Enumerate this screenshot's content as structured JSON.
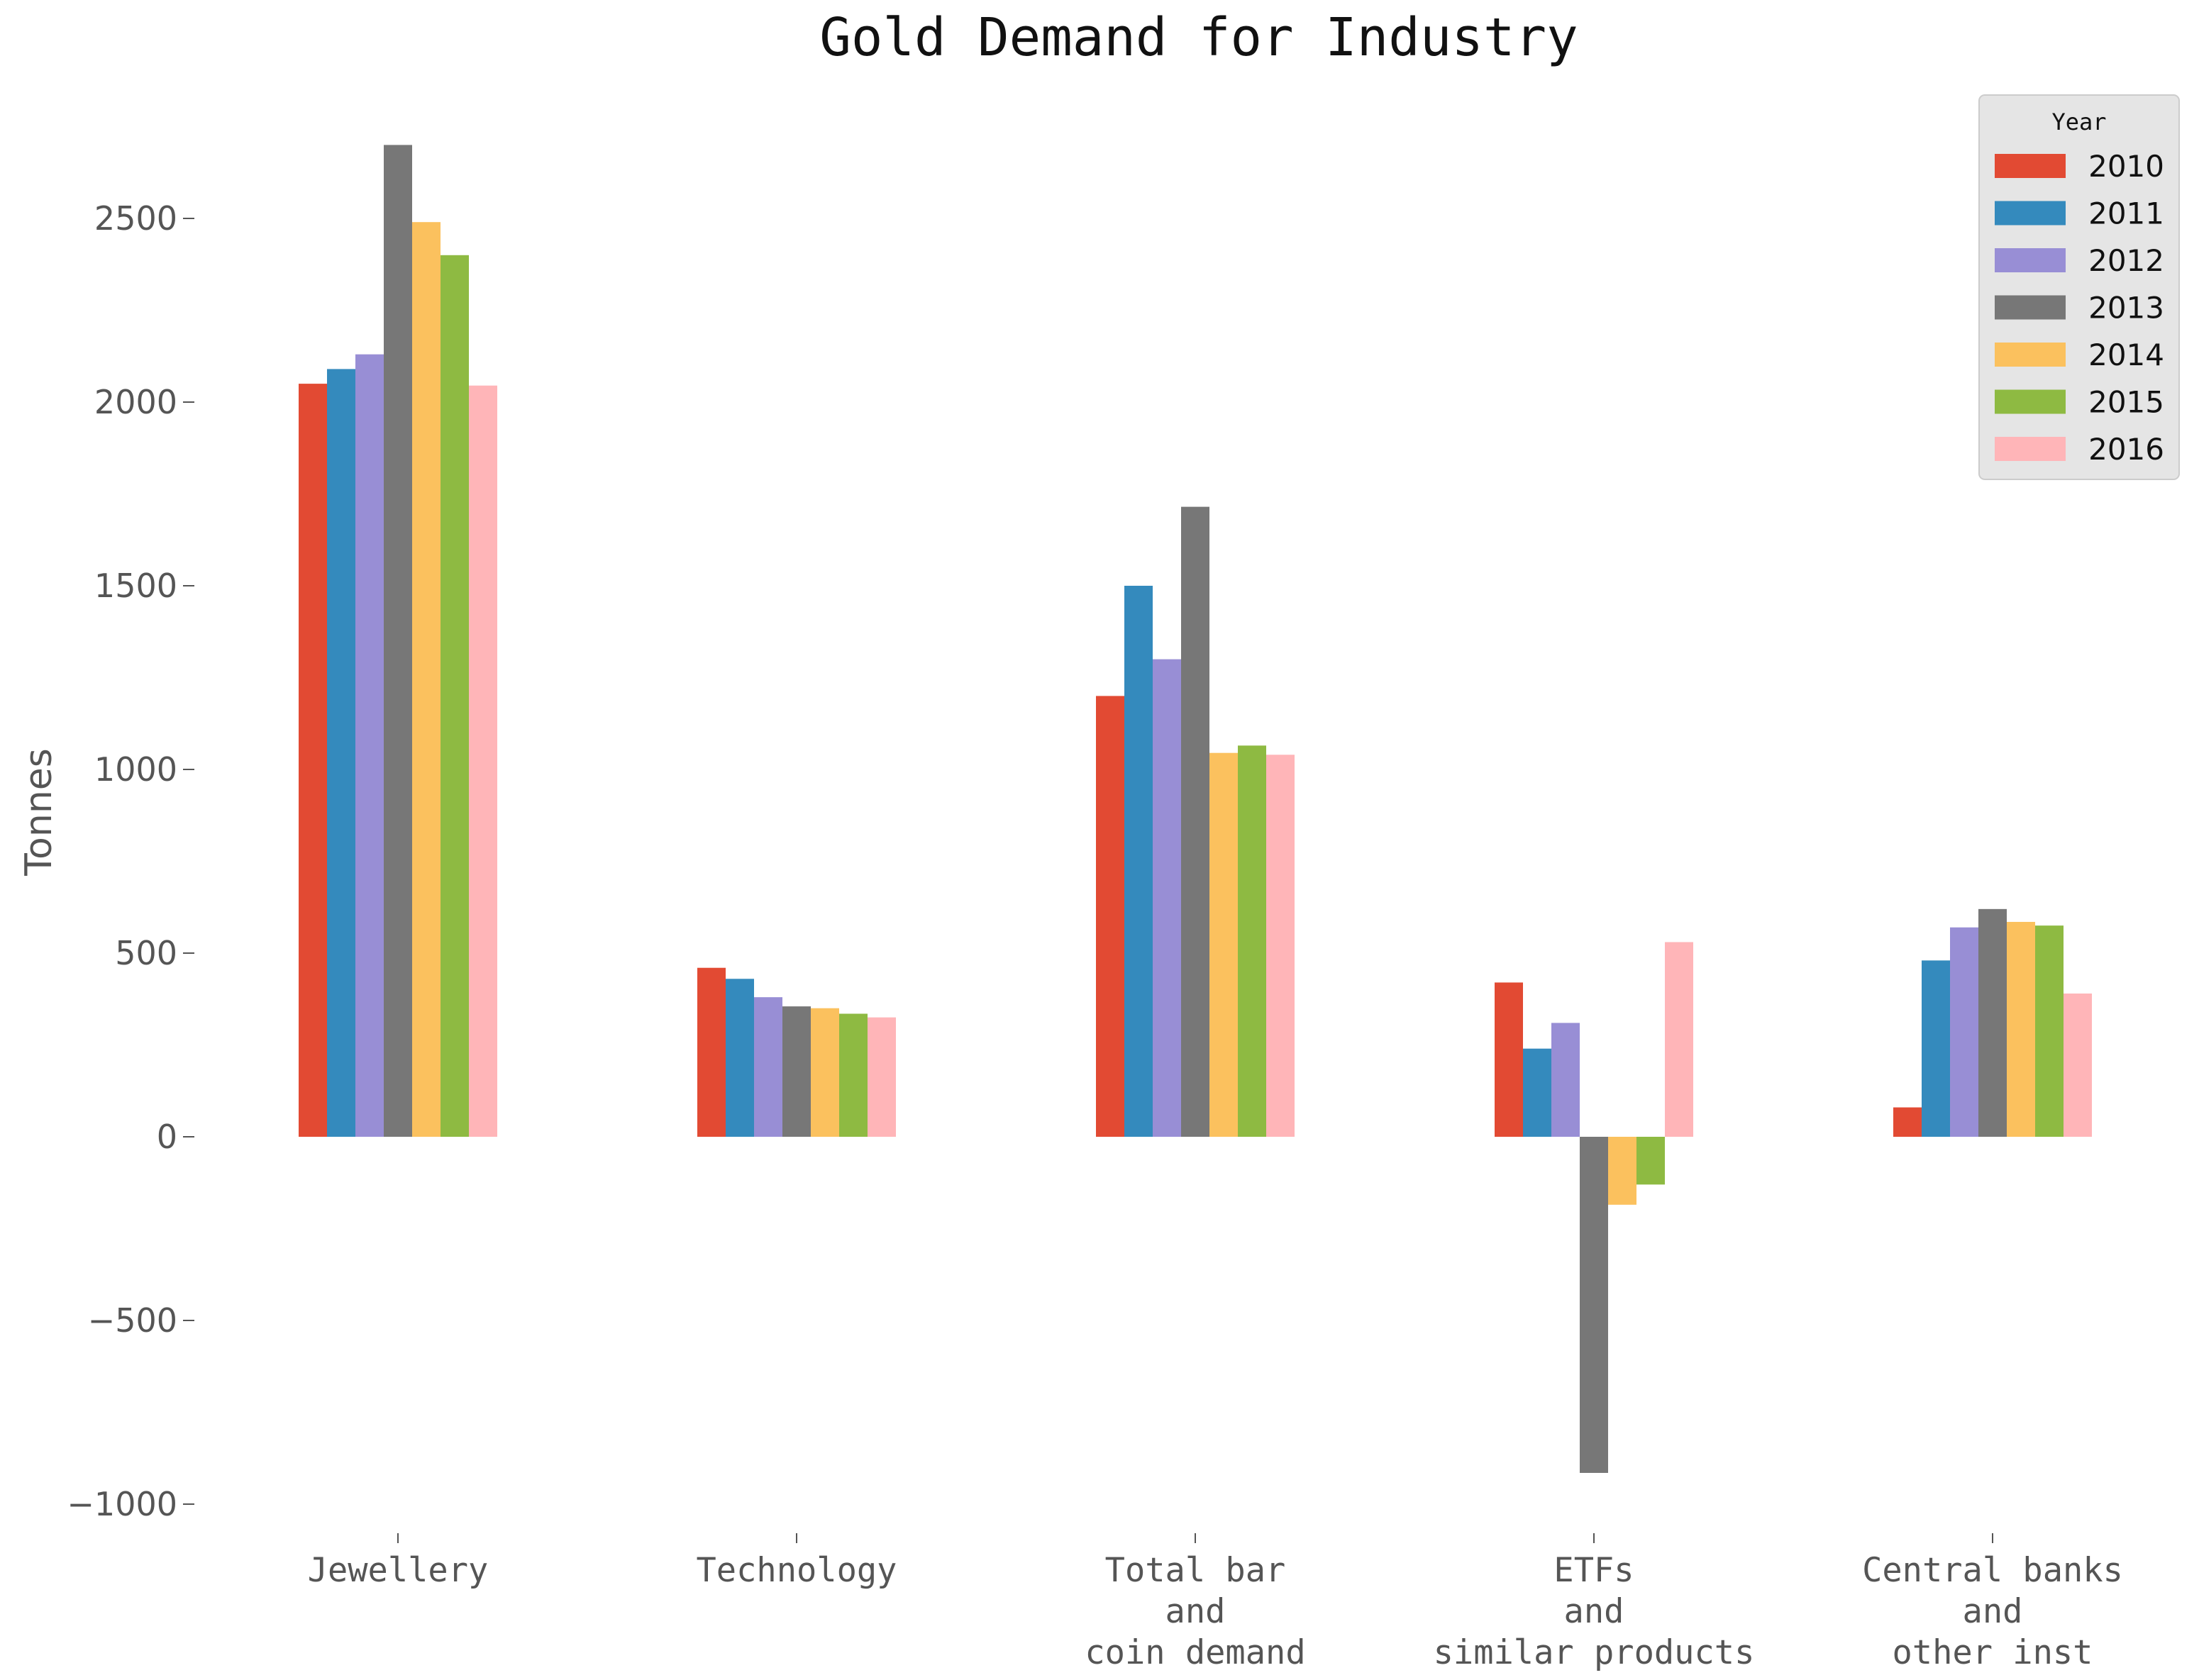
{
  "chart_data": {
    "type": "bar",
    "title": "Gold Demand for Industry",
    "xlabel": "",
    "ylabel": "Tonnes",
    "ylim": [
      -1100,
      2820
    ],
    "yticks": [
      -1000,
      -500,
      0,
      500,
      1000,
      1500,
      2000,
      2500
    ],
    "ytick_labels": [
      "−1000",
      "−500",
      "0",
      "500",
      "1000",
      "1500",
      "2000",
      "2500"
    ],
    "categories": [
      [
        "Jewellery"
      ],
      [
        "Technology"
      ],
      [
        "Total bar",
        "and",
        "coin demand"
      ],
      [
        "ETFs",
        "and",
        "similar products"
      ],
      [
        "Central banks",
        "and",
        "other inst"
      ]
    ],
    "legend": {
      "title": "Year",
      "position": "top-right"
    },
    "grid": false,
    "series": [
      {
        "name": "2010",
        "color": "#E24A33",
        "values": [
          2050,
          460,
          1200,
          420,
          80
        ]
      },
      {
        "name": "2011",
        "color": "#348ABD",
        "values": [
          2090,
          430,
          1500,
          240,
          480
        ]
      },
      {
        "name": "2012",
        "color": "#988ED5",
        "values": [
          2130,
          380,
          1300,
          310,
          570
        ]
      },
      {
        "name": "2013",
        "color": "#777777",
        "values": [
          2700,
          355,
          1715,
          -915,
          620
        ]
      },
      {
        "name": "2014",
        "color": "#FBC15E",
        "values": [
          2490,
          350,
          1045,
          -185,
          585
        ]
      },
      {
        "name": "2015",
        "color": "#8EBA42",
        "values": [
          2400,
          335,
          1065,
          -130,
          575
        ]
      },
      {
        "name": "2016",
        "color": "#FFB5B8",
        "values": [
          2045,
          325,
          1040,
          530,
          390
        ]
      }
    ]
  }
}
